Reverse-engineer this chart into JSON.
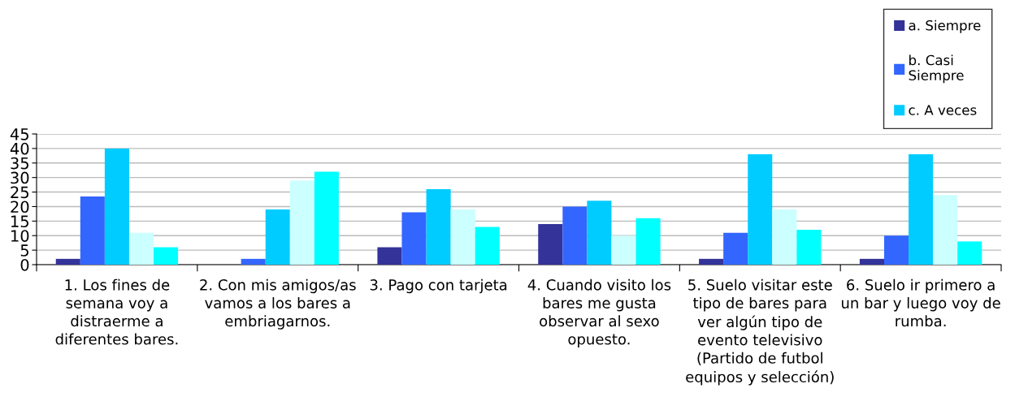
{
  "chart_data": {
    "type": "bar",
    "categories": [
      "1. Los fines de semana voy a distraerme a diferentes bares.",
      "2. Con mis amigos/as vamos a los bares a embriagarnos.",
      "3. Pago con tarjeta",
      "4. Cuando visito los bares me gusta observar al sexo opuesto.",
      "5. Suelo visitar este tipo de bares para ver algún tipo de evento televisivo (Partido de futbol equipos y selección)",
      "6. Suelo ir primero a un bar y luego voy de rumba."
    ],
    "series": [
      {
        "name": "a. Siempre",
        "color": "#333399",
        "values": [
          2,
          0,
          6,
          14,
          2,
          2
        ]
      },
      {
        "name": "b. Casi Siempre",
        "color": "#3366ff",
        "values": [
          23.5,
          2,
          18,
          20,
          11,
          10
        ]
      },
      {
        "name": "c. A veces",
        "color": "#00ccff",
        "values": [
          40,
          19,
          26,
          22,
          38,
          38
        ]
      },
      {
        "color": "#ccffff",
        "values": [
          11,
          29,
          19,
          10,
          19,
          24
        ]
      },
      {
        "color": "#00ffff",
        "values": [
          6,
          32,
          13,
          16,
          12,
          8
        ]
      }
    ],
    "ylim": [
      0,
      45
    ],
    "yticks": [
      0,
      5,
      10,
      15,
      20,
      25,
      30,
      35,
      40,
      45
    ],
    "grid": "y",
    "legend": "top right"
  }
}
